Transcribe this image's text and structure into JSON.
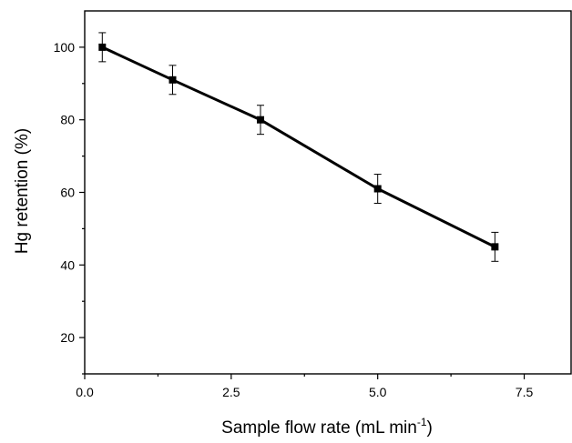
{
  "chart_data": {
    "type": "line",
    "title": "",
    "xlabel": "Sample flow rate (mL min",
    "xlabel_superscript": "-1",
    "xlabel_suffix": ")",
    "ylabel": "Hg retention (%)",
    "xlim": [
      0.0,
      8.3
    ],
    "ylim": [
      10,
      110
    ],
    "xticks": [
      0.0,
      2.5,
      5.0,
      7.5
    ],
    "xtick_labels": [
      "0.0",
      "2.5",
      "5.0",
      "7.5"
    ],
    "x_minor_ticks": [
      1.25,
      3.75,
      6.25
    ],
    "yticks": [
      20,
      40,
      60,
      80,
      100
    ],
    "ytick_labels": [
      "20",
      "40",
      "60",
      "80",
      "100"
    ],
    "y_minor_ticks": [
      10,
      30,
      50,
      70,
      90
    ],
    "grid": false,
    "series": [
      {
        "x": [
          0.3,
          1.5,
          3.0,
          5.0,
          7.0
        ],
        "y": [
          100,
          91,
          80,
          61,
          45
        ],
        "error": [
          4,
          4,
          4,
          4,
          4
        ],
        "color": "#000000",
        "marker": "square"
      }
    ]
  }
}
